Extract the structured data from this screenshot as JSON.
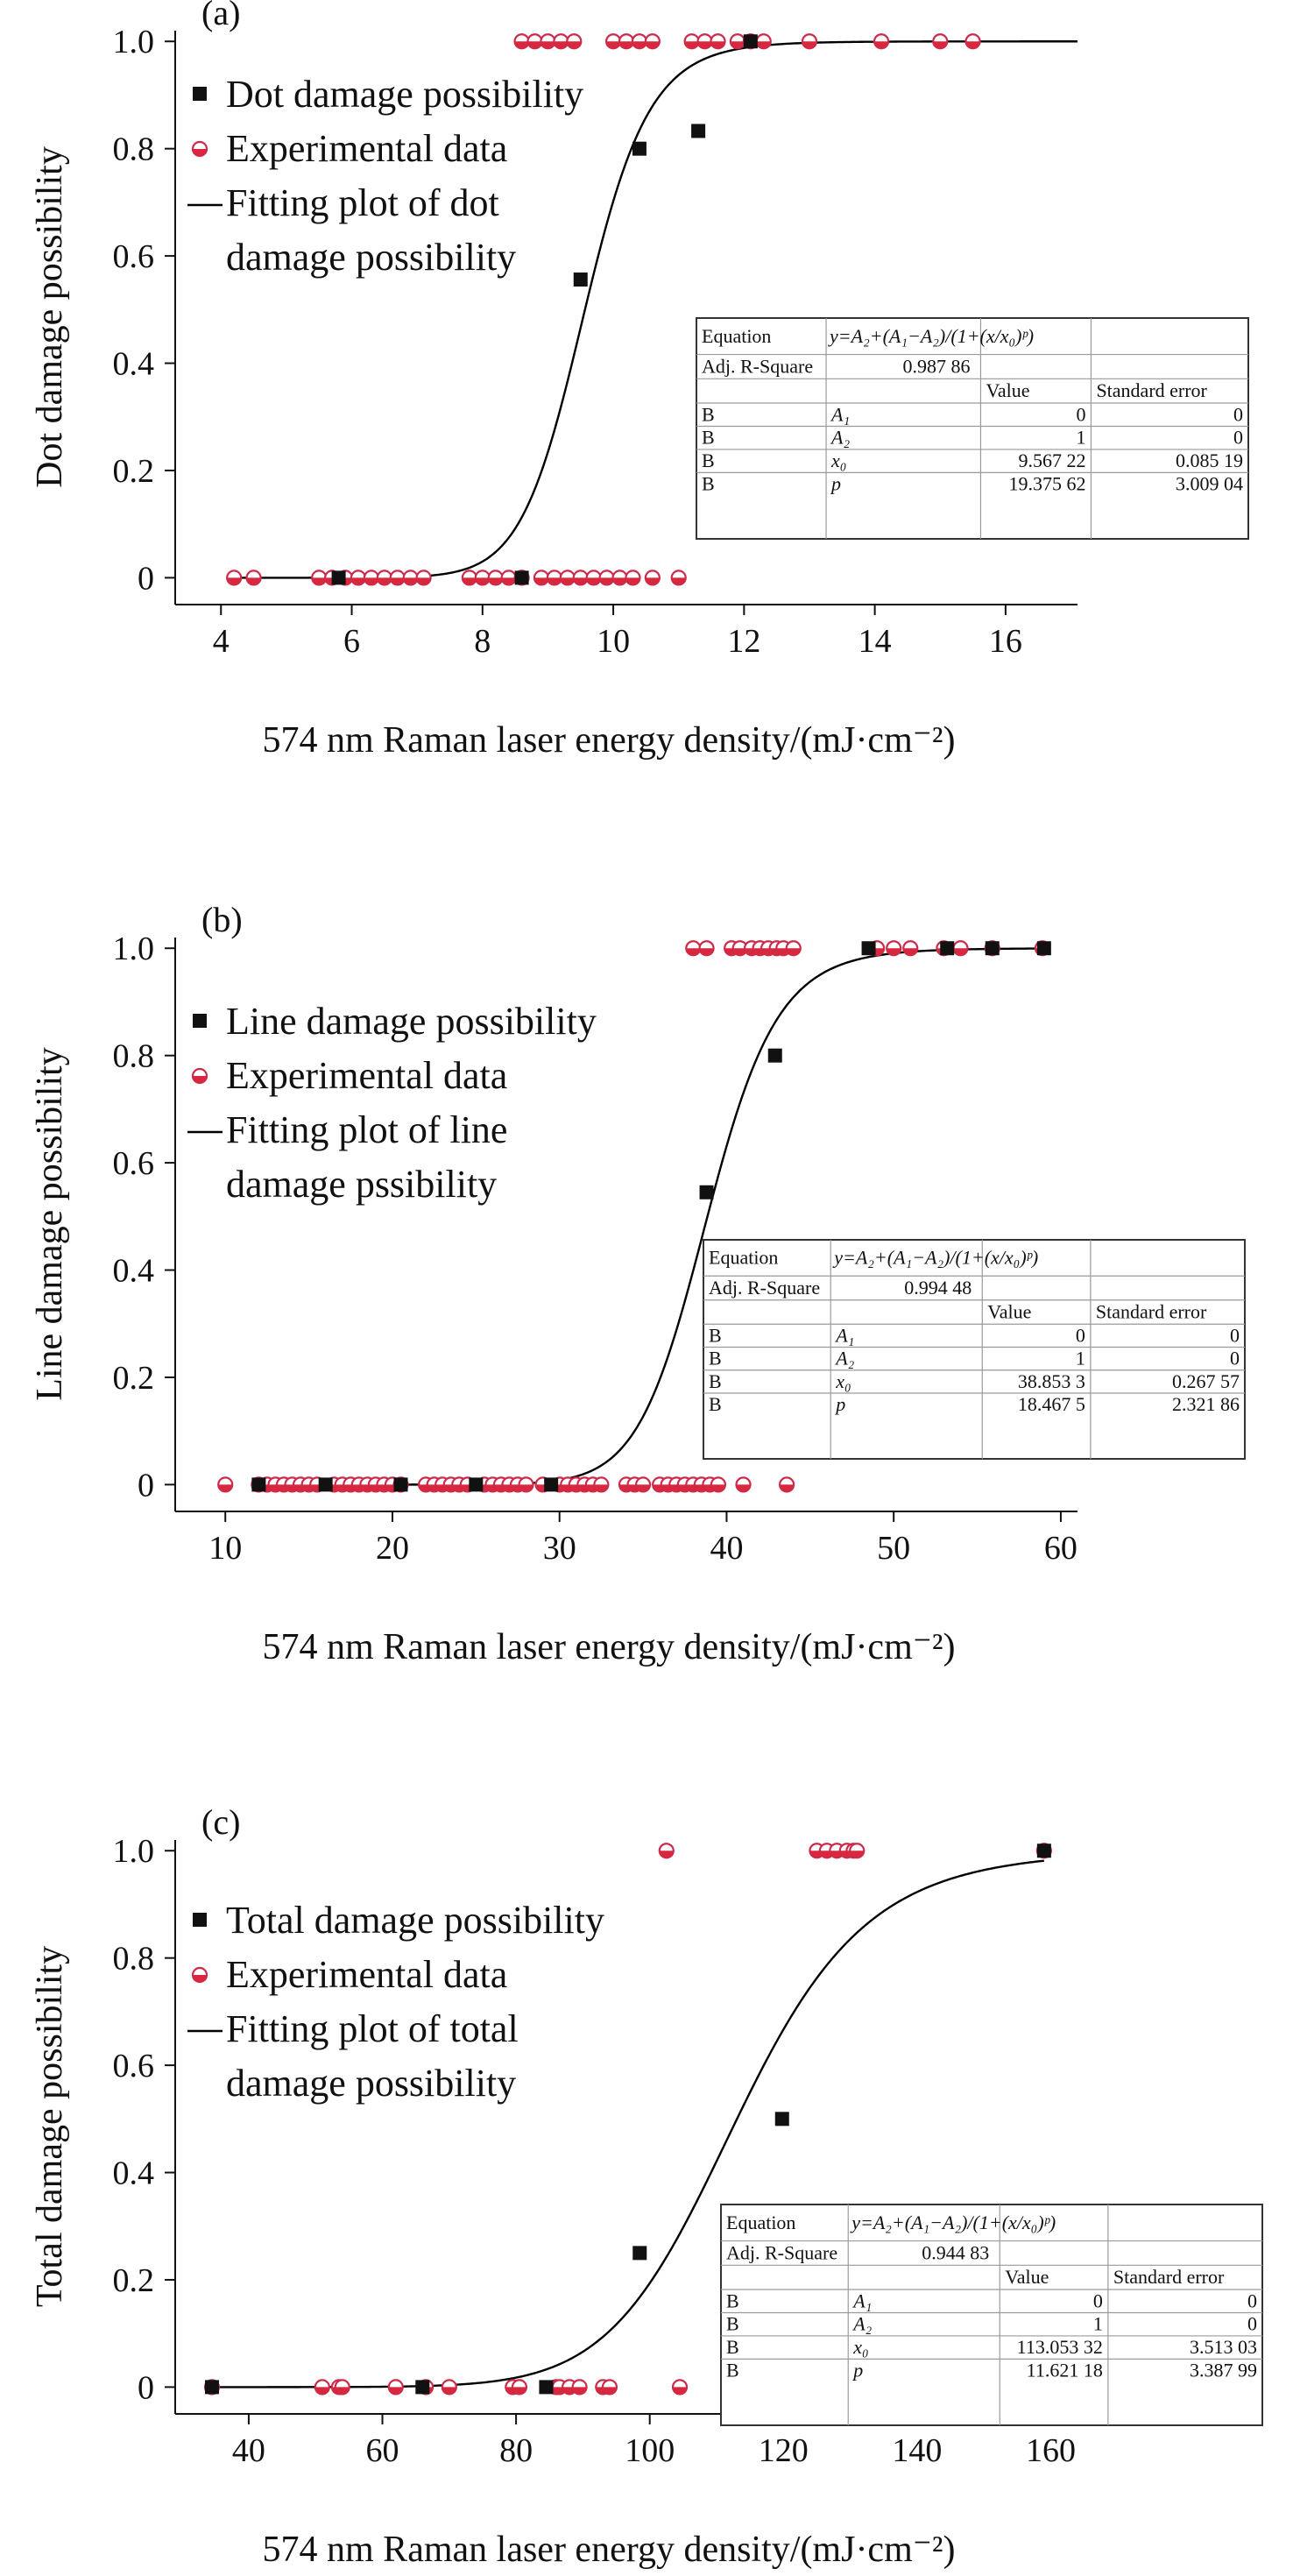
{
  "figure_title": "",
  "chart_data": [
    {
      "panel_label": "(a)",
      "type": "scatter",
      "title": "",
      "xlabel": "574 nm Raman laser energy density/(mJ·cm⁻²)",
      "ylabel": "Dot damage possibility",
      "xlim": [
        3.3,
        17.1
      ],
      "ylim": [
        -0.05,
        1.02
      ],
      "xticks": [
        4,
        6,
        8,
        10,
        12,
        14,
        16
      ],
      "xtick_labels": [
        "4",
        "6",
        "8",
        "10",
        "12",
        "14",
        "16"
      ],
      "yticks": [
        0,
        0.2,
        0.4,
        0.6,
        0.8,
        1.0
      ],
      "ytick_labels": [
        "0",
        "0.2",
        "0.4",
        "0.6",
        "0.8",
        "1.0"
      ],
      "grid": false,
      "legend_position": "top-left",
      "legend": [
        "Dot damage possibility",
        "Experimental data",
        "Fitting plot of dot",
        "damage possibility"
      ],
      "series": [
        {
          "name": "Dot damage possibility",
          "marker": "filled-square",
          "points": [
            [
              5.8,
              0
            ],
            [
              8.6,
              0
            ],
            [
              9.5,
              0.556
            ],
            [
              10.4,
              0.8
            ],
            [
              11.3,
              0.833
            ],
            [
              12.1,
              1.0
            ]
          ]
        },
        {
          "name": "Experimental data",
          "marker": "half-circle",
          "x_zero": [
            4.2,
            4.5,
            5.5,
            5.7,
            5.9,
            6.1,
            6.3,
            6.5,
            6.7,
            6.9,
            7.1,
            7.8,
            8.0,
            8.2,
            8.4,
            8.6,
            8.9,
            9.1,
            9.3,
            9.5,
            9.7,
            9.9,
            10.1,
            10.3,
            10.6,
            11.0
          ],
          "x_one": [
            8.6,
            8.8,
            9.0,
            9.2,
            9.4,
            10.0,
            10.2,
            10.4,
            10.6,
            11.2,
            11.4,
            11.6,
            11.9,
            12.1,
            12.3,
            13.0,
            14.1,
            15.0,
            15.5
          ]
        },
        {
          "name": "Fitting plot of dot damage possibility",
          "type": "line",
          "model": "logistic",
          "A1": 0,
          "A2": 1,
          "x0": 9.56722,
          "p": 19.37562,
          "x_range": [
            4.2,
            17.1
          ]
        }
      ],
      "fit_table": {
        "equation_label": "Equation",
        "equation": "y=A₂+(A₁−A₂)/(1+(x/x₀)ᵖ)",
        "adj_label": "Adj. R-Square",
        "adj_value": "0.987 86",
        "headers": [
          "Value",
          "Standard error"
        ],
        "rows": [
          [
            "B",
            "A₁",
            "0",
            "0"
          ],
          [
            "B",
            "A₂",
            "1",
            "0"
          ],
          [
            "B",
            "x₀",
            "9.567 22",
            "0.085 19"
          ],
          [
            "B",
            "p",
            "19.375 62",
            "3.009 04"
          ]
        ]
      }
    },
    {
      "panel_label": "(b)",
      "type": "scatter",
      "title": "",
      "xlabel": "574 nm Raman laser energy density/(mJ·cm⁻²)",
      "ylabel": "Line damage possibility",
      "xlim": [
        7,
        61
      ],
      "ylim": [
        -0.05,
        1.02
      ],
      "xticks": [
        10,
        20,
        30,
        40,
        50,
        60
      ],
      "xtick_labels": [
        "10",
        "20",
        "30",
        "40",
        "50",
        "60"
      ],
      "yticks": [
        0,
        0.2,
        0.4,
        0.6,
        0.8,
        1.0
      ],
      "ytick_labels": [
        "0",
        "0.2",
        "0.4",
        "0.6",
        "0.8",
        "1.0"
      ],
      "grid": false,
      "legend_position": "top-left",
      "legend": [
        "Line damage possibility",
        "Experimental data",
        "Fitting plot of line",
        "damage pssibility"
      ],
      "series": [
        {
          "name": "Line damage possibility",
          "marker": "filled-square",
          "points": [
            [
              12,
              0
            ],
            [
              16,
              0
            ],
            [
              20.5,
              0
            ],
            [
              25,
              0
            ],
            [
              29.5,
              0
            ],
            [
              38.8,
              0.545
            ],
            [
              42.9,
              0.8
            ],
            [
              48.5,
              1.0
            ],
            [
              53.2,
              1.0
            ],
            [
              55.9,
              1.0
            ],
            [
              59,
              1.0
            ]
          ]
        },
        {
          "name": "Experimental data",
          "marker": "half-circle",
          "x_zero": [
            10,
            12,
            12.5,
            13,
            13.5,
            14,
            14.5,
            15,
            15.5,
            16.5,
            17,
            17.5,
            18,
            18.5,
            19,
            19.5,
            20,
            20.5,
            22,
            22.5,
            23,
            23.5,
            24,
            24.5,
            25.5,
            26,
            26.5,
            27,
            27.5,
            28,
            29,
            30,
            30.5,
            31,
            31.5,
            32,
            32.5,
            34,
            34.5,
            35,
            36,
            36.5,
            37,
            37.5,
            38,
            38.5,
            39,
            39.5,
            41,
            43.6
          ],
          "x_one": [
            38,
            38.8,
            40.3,
            40.8,
            41.5,
            42,
            42.5,
            43,
            43.4,
            44,
            49,
            50,
            51,
            53,
            54,
            55.9,
            58.9
          ]
        },
        {
          "name": "Fitting plot of line damage possibility",
          "type": "line",
          "model": "logistic",
          "A1": 0,
          "A2": 1,
          "x0": 38.8533,
          "p": 18.4675,
          "x_range": [
            12,
            59
          ]
        }
      ],
      "fit_table": {
        "equation_label": "Equation",
        "equation": "y=A₂+(A₁−A₂)/(1+(x/x₀)ᵖ)",
        "adj_label": "Adj. R-Square",
        "adj_value": "0.994 48",
        "headers": [
          "Value",
          "Standard error"
        ],
        "rows": [
          [
            "B",
            "A₁",
            "0",
            "0"
          ],
          [
            "B",
            "A₂",
            "1",
            "0"
          ],
          [
            "B",
            "x₀",
            "38.853 3",
            "0.267 57"
          ],
          [
            "B",
            "p",
            "18.467 5",
            "2.321 86"
          ]
        ]
      }
    },
    {
      "panel_label": "(c)",
      "type": "scatter",
      "title": "",
      "xlabel": "574 nm Raman laser energy density/(mJ·cm⁻²)",
      "ylabel": "Total damage possibility",
      "xlim": [
        29,
        164
      ],
      "ylim": [
        -0.05,
        1.02
      ],
      "xticks": [
        40,
        60,
        80,
        100,
        120,
        140,
        160
      ],
      "xtick_labels": [
        "40",
        "60",
        "80",
        "100",
        "120",
        "140",
        "160"
      ],
      "yticks": [
        0,
        0.2,
        0.4,
        0.6,
        0.8,
        1.0
      ],
      "ytick_labels": [
        "0",
        "0.2",
        "0.4",
        "0.6",
        "0.8",
        "1.0"
      ],
      "grid": false,
      "legend_position": "top-left",
      "legend": [
        "Total damage possibility",
        "Experimental data",
        "Fitting plot of total",
        "damage possibility"
      ],
      "series": [
        {
          "name": "Total damage possibility",
          "marker": "filled-square",
          "points": [
            [
              34.5,
              0
            ],
            [
              66,
              0
            ],
            [
              84.5,
              0
            ],
            [
              98.5,
              0.25
            ],
            [
              119.8,
              0.5
            ],
            [
              159,
              1.0
            ]
          ]
        },
        {
          "name": "Experimental data",
          "marker": "half-circle",
          "x_zero": [
            34.5,
            51,
            53.5,
            54,
            62,
            66.5,
            70,
            79.5,
            80.5,
            86,
            86.5,
            88,
            89.5,
            93,
            94,
            104.5,
            114.5
          ],
          "x_one": [
            102.5,
            125,
            126.5,
            128,
            129.5,
            130.5,
            131,
            159
          ]
        },
        {
          "name": "Fitting plot of total damage possibility",
          "type": "line",
          "model": "logistic",
          "A1": 0,
          "A2": 1,
          "x0": 113.05332,
          "p": 11.62118,
          "x_range": [
            34.5,
            159
          ]
        }
      ],
      "fit_table": {
        "equation_label": "Equation",
        "equation": "y=A₂+(A₁−A₂)/(1+(x/x₀)ᵖ)",
        "adj_label": "Adj. R-Square",
        "adj_value": "0.944 83",
        "headers": [
          "Value",
          "Standard error"
        ],
        "rows": [
          [
            "B",
            "A₁",
            "0",
            "0"
          ],
          [
            "B",
            "A₂",
            "1",
            "0"
          ],
          [
            "B",
            "x₀",
            "113.053 32",
            "3.513 03"
          ],
          [
            "B",
            "p",
            "11.621 18",
            "3.387 99"
          ]
        ]
      }
    }
  ],
  "colors": {
    "axis": "#111111",
    "square": "#111111",
    "circle_edge": "#cc2a4a",
    "circle_fill": "#d8283f",
    "curve": "#000000",
    "table_border": "#9a9a9a"
  }
}
